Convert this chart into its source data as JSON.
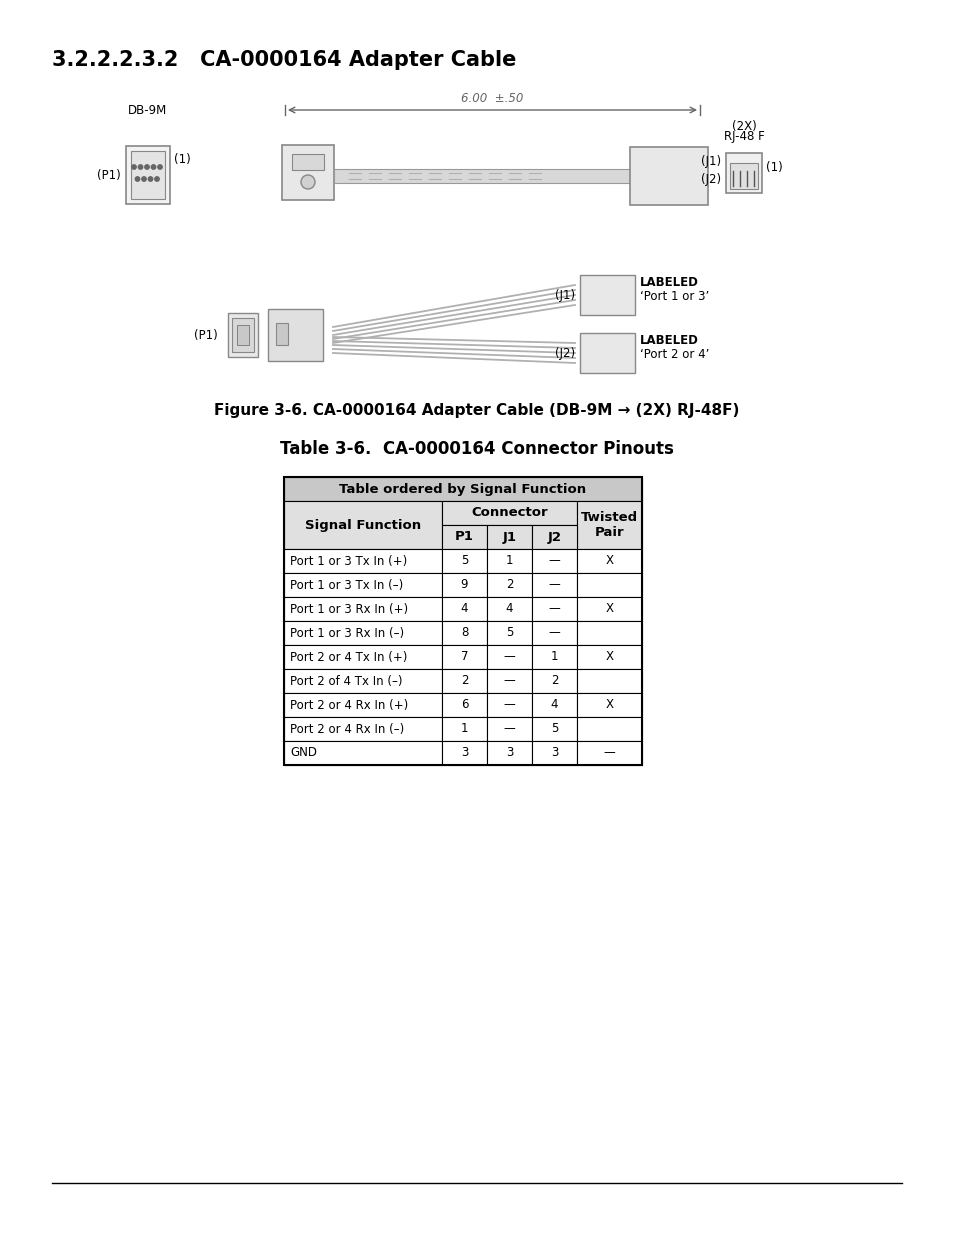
{
  "title": "3.2.2.2.3.2   CA-0000164 Adapter Cable",
  "figure_caption": "Figure 3-6. CA-0000164 Adapter Cable (DB-9M → (2X) RJ-48F)",
  "table_title": "Table 3-6.  CA-0000164 Connector Pinouts",
  "table_header_row1": "Table ordered by Signal Function",
  "table_rows": [
    [
      "Port 1 or 3 Tx In (+)",
      "5",
      "1",
      "—",
      "X"
    ],
    [
      "Port 1 or 3 Tx In (–)",
      "9",
      "2",
      "—",
      ""
    ],
    [
      "Port 1 or 3 Rx In (+)",
      "4",
      "4",
      "—",
      "X"
    ],
    [
      "Port 1 or 3 Rx In (–)",
      "8",
      "5",
      "—",
      ""
    ],
    [
      "Port 2 or 4 Tx In (+)",
      "7",
      "—",
      "1",
      "X"
    ],
    [
      "Port 2 of 4 Tx In (–)",
      "2",
      "—",
      "2",
      ""
    ],
    [
      "Port 2 or 4 Rx In (+)",
      "6",
      "—",
      "4",
      "X"
    ],
    [
      "Port 2 or 4 Rx In (–)",
      "1",
      "—",
      "5",
      ""
    ],
    [
      "GND",
      "3",
      "3",
      "3",
      "—"
    ]
  ],
  "bg_color": "#ffffff",
  "table_header_bg": "#c8c8c8",
  "table_subheader_bg": "#e0e0e0",
  "table_row_bg": "#ffffff",
  "border_color": "#000000",
  "diagram_color": "#888888",
  "dim_line_color": "#666666"
}
